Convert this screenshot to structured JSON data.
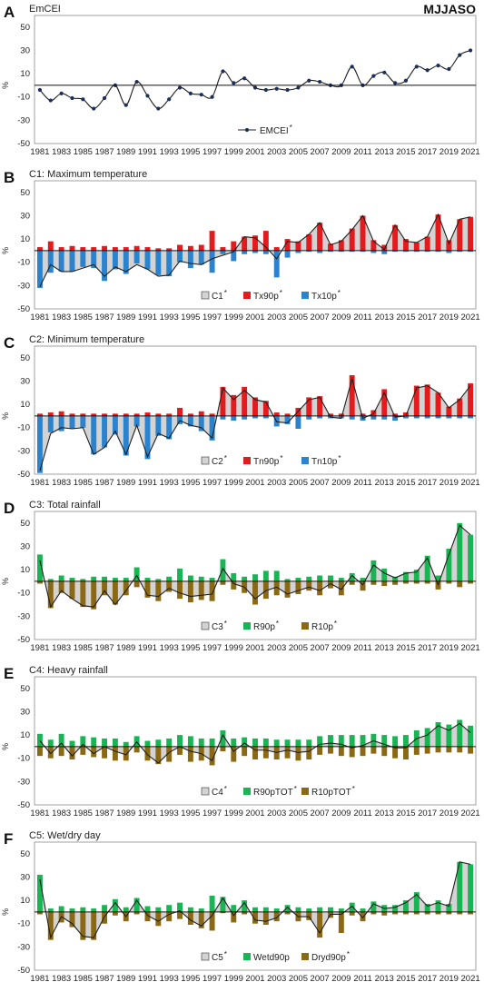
{
  "season": "MJJASO",
  "colors": {
    "composite_fill": "#d3d3d3",
    "line": "#1f1f1f",
    "warm": "#e41a1c",
    "cold": "#2b83ce",
    "wet": "#19b454",
    "dry": "#8b6914",
    "emcei": "#1c2f5a"
  },
  "years": [
    1981,
    1982,
    1983,
    1984,
    1985,
    1986,
    1987,
    1988,
    1989,
    1990,
    1991,
    1992,
    1993,
    1994,
    1995,
    1996,
    1997,
    1998,
    1999,
    2000,
    2001,
    2002,
    2003,
    2004,
    2005,
    2006,
    2007,
    2008,
    2009,
    2010,
    2011,
    2012,
    2013,
    2014,
    2015,
    2016,
    2017,
    2018,
    2019,
    2020,
    2021
  ],
  "chart_data": [
    {
      "type": "line",
      "letter": "A",
      "title": "EmCEI",
      "ylabel": "%",
      "ylim": [
        -50,
        60
      ],
      "yticks": [
        50,
        30,
        10,
        -10,
        -30,
        -50
      ],
      "xticks": [
        "1981",
        "1983",
        "1985",
        "1987",
        "1989",
        "1991",
        "1993",
        "1995",
        "1997",
        "1999",
        "2001",
        "2003",
        "2005",
        "2007",
        "2009",
        "2011",
        "2013",
        "2015",
        "2017",
        "2019",
        "2021"
      ],
      "composite": {
        "name": "EMCEI",
        "values": [
          -4,
          -13,
          -7,
          -11,
          -12,
          -20,
          -11,
          0,
          -17,
          3,
          -9,
          -20,
          -12,
          -2,
          -7,
          -8,
          -10,
          12,
          2,
          6,
          -2,
          -4,
          -3,
          -4,
          -2,
          4,
          3,
          0,
          0,
          16,
          0,
          8,
          11,
          2,
          4,
          16,
          13,
          17,
          14,
          26,
          30
        ]
      },
      "legend": [
        {
          "label": "EMCEI",
          "sup": "*",
          "kind": "emcei"
        }
      ]
    },
    {
      "type": "bar",
      "letter": "B",
      "title": "C1: Maximum temperature",
      "ylabel": "%",
      "ylim": [
        -50,
        60
      ],
      "yticks": [
        50,
        30,
        10,
        -10,
        -30,
        -50
      ],
      "xticks": [
        "1981",
        "1983",
        "1985",
        "1987",
        "1989",
        "1991",
        "1993",
        "1995",
        "1997",
        "1999",
        "2001",
        "2003",
        "2005",
        "2007",
        "2009",
        "2011",
        "2013",
        "2015",
        "2017",
        "2019",
        "2021"
      ],
      "composite": {
        "name": "C1",
        "values": [
          -31,
          -12,
          -18,
          -18,
          -15,
          -12,
          -22,
          -14,
          -18,
          -12,
          -16,
          -22,
          -21,
          -9,
          -11,
          -12,
          -7,
          -4,
          -1,
          12,
          11,
          3,
          -7,
          8,
          7,
          14,
          24,
          5,
          8,
          18,
          30,
          8,
          1,
          22,
          8,
          7,
          12,
          31,
          6,
          27,
          29
        ]
      },
      "series": [
        {
          "name": "Tx90p",
          "values": [
            3,
            8,
            3,
            4,
            3,
            3,
            4,
            3,
            3,
            4,
            3,
            2,
            2,
            5,
            4,
            5,
            17,
            3,
            8,
            12,
            13,
            17,
            3,
            10,
            8,
            14,
            24,
            6,
            9,
            19,
            30,
            9,
            5,
            22,
            10,
            7,
            12,
            31,
            9,
            27,
            29
          ]
        },
        {
          "name": "Tx10p",
          "values": [
            -32,
            -19,
            -18,
            -18,
            -14,
            -15,
            -26,
            -16,
            -20,
            -11,
            -16,
            -21,
            -22,
            -10,
            -15,
            -12,
            -19,
            -3,
            -9,
            -3,
            -2,
            -3,
            -23,
            -6,
            -2,
            -1,
            -2,
            -1,
            -1,
            -1,
            -1,
            -2,
            -3,
            -1,
            -1,
            -1,
            -1,
            -1,
            -2,
            -1,
            -1
          ]
        }
      ],
      "legend": [
        {
          "label": "C1",
          "sup": "*",
          "kind": "composite"
        },
        {
          "label": "Tx90p",
          "sup": "*",
          "kind": "warm"
        },
        {
          "label": "Tx10p",
          "sup": "*",
          "kind": "cold"
        }
      ]
    },
    {
      "type": "bar",
      "letter": "C",
      "title": "C2: Minimum temperature",
      "ylabel": "%",
      "ylim": [
        -50,
        60
      ],
      "yticks": [
        50,
        30,
        10,
        -10,
        -30,
        -50
      ],
      "xticks": [
        "1981",
        "1983",
        "1985",
        "1987",
        "1989",
        "1991",
        "1993",
        "1995",
        "1997",
        "1999",
        "2001",
        "2003",
        "2005",
        "2007",
        "2009",
        "2011",
        "2013",
        "2015",
        "2017",
        "2019",
        "2021"
      ],
      "composite": {
        "name": "C2",
        "values": [
          -47,
          -15,
          -10,
          -11,
          -10,
          -33,
          -27,
          -13,
          -33,
          -8,
          -35,
          -15,
          -19,
          -4,
          -8,
          -10,
          -19,
          24,
          14,
          22,
          14,
          12,
          -5,
          -6,
          4,
          14,
          16,
          -1,
          -2,
          32,
          -2,
          2,
          20,
          -1,
          0,
          24,
          26,
          20,
          7,
          14,
          26
        ]
      },
      "series": [
        {
          "name": "Tn90p",
          "values": [
            2,
            3,
            4,
            2,
            2,
            2,
            2,
            2,
            2,
            2,
            3,
            2,
            2,
            7,
            2,
            4,
            2,
            25,
            18,
            25,
            16,
            13,
            3,
            2,
            7,
            16,
            17,
            2,
            2,
            35,
            2,
            5,
            23,
            2,
            3,
            26,
            27,
            20,
            8,
            15,
            28
          ]
        },
        {
          "name": "Tn10p",
          "values": [
            -49,
            -14,
            -13,
            -11,
            -10,
            -33,
            -27,
            -16,
            -34,
            -9,
            -37,
            -17,
            -20,
            -7,
            -9,
            -13,
            -21,
            -3,
            -4,
            -3,
            -2,
            -2,
            -9,
            -7,
            -11,
            -3,
            -2,
            -2,
            -2,
            -3,
            -4,
            -3,
            -3,
            -4,
            -2,
            -2,
            -2,
            -2,
            -2,
            -2,
            -2
          ]
        }
      ],
      "legend": [
        {
          "label": "C2",
          "sup": "*",
          "kind": "composite"
        },
        {
          "label": "Tn90p",
          "sup": "*",
          "kind": "warm"
        },
        {
          "label": "Tn10p",
          "sup": "*",
          "kind": "cold"
        }
      ]
    },
    {
      "type": "bar",
      "letter": "D",
      "title": "C3: Total rainfall",
      "ylabel": "%",
      "ylim": [
        -50,
        60
      ],
      "yticks": [
        50,
        30,
        10,
        -10,
        -30,
        -50
      ],
      "xticks": [
        "1981",
        "1983",
        "1985",
        "1987",
        "1989",
        "1991",
        "1993",
        "1995",
        "1997",
        "1999",
        "2001",
        "2003",
        "2005",
        "2007",
        "2009",
        "2011",
        "2013",
        "2015",
        "2017",
        "2019",
        "2021"
      ],
      "composite": {
        "name": "C3",
        "values": [
          18,
          -22,
          -8,
          -15,
          -21,
          -22,
          -8,
          -20,
          -8,
          5,
          -12,
          -13,
          -6,
          -10,
          -13,
          -12,
          -11,
          11,
          -2,
          -5,
          -15,
          -8,
          -5,
          -11,
          -8,
          -5,
          -8,
          -2,
          -7,
          5,
          -3,
          14,
          7,
          3,
          7,
          8,
          20,
          -3,
          23,
          48,
          40
        ]
      },
      "series": [
        {
          "name": "R90p",
          "values": [
            23,
            2,
            5,
            3,
            2,
            4,
            4,
            3,
            3,
            12,
            3,
            2,
            4,
            11,
            5,
            4,
            3,
            19,
            7,
            4,
            6,
            9,
            9,
            2,
            3,
            4,
            5,
            5,
            3,
            7,
            3,
            18,
            11,
            4,
            8,
            10,
            22,
            5,
            28,
            50,
            40
          ]
        },
        {
          "name": "R10p",
          "values": [
            -2,
            -23,
            -10,
            -15,
            -22,
            -24,
            -12,
            -20,
            -12,
            -5,
            -14,
            -17,
            -9,
            -15,
            -18,
            -16,
            -17,
            -3,
            -7,
            -10,
            -20,
            -15,
            -12,
            -14,
            -11,
            -8,
            -12,
            -6,
            -12,
            -3,
            -8,
            -3,
            -4,
            -3,
            -2,
            -2,
            -2,
            -7,
            -2,
            -5,
            -2
          ]
        }
      ],
      "legend": [
        {
          "label": "C3",
          "sup": "*",
          "kind": "composite"
        },
        {
          "label": "R90p",
          "sup": "*",
          "kind": "wet"
        },
        {
          "label": "R10p",
          "sup": "*",
          "kind": "dry"
        }
      ]
    },
    {
      "type": "bar",
      "letter": "E",
      "title": "C4: Heavy rainfall",
      "ylabel": "%",
      "ylim": [
        -50,
        60
      ],
      "yticks": [
        50,
        30,
        10,
        -10,
        -30,
        -50
      ],
      "xticks": [
        "1981",
        "1983",
        "1985",
        "1987",
        "1989",
        "1991",
        "1993",
        "1995",
        "1997",
        "1999",
        "2001",
        "2003",
        "2005",
        "2007",
        "2009",
        "2011",
        "2013",
        "2015",
        "2017",
        "2019",
        "2021"
      ],
      "composite": {
        "name": "C4",
        "values": [
          5,
          -6,
          3,
          -8,
          2,
          -6,
          0,
          -4,
          -7,
          4,
          -7,
          -14,
          -5,
          0,
          -4,
          -6,
          -12,
          10,
          -4,
          3,
          -3,
          -3,
          -5,
          -3,
          -5,
          -4,
          2,
          3,
          2,
          -1,
          1,
          5,
          2,
          -1,
          -1,
          7,
          10,
          18,
          14,
          20,
          12
        ]
      },
      "series": [
        {
          "name": "R90pTOT",
          "values": [
            11,
            6,
            11,
            5,
            9,
            8,
            7,
            7,
            4,
            9,
            5,
            6,
            7,
            10,
            9,
            7,
            7,
            14,
            7,
            8,
            7,
            7,
            6,
            6,
            6,
            6,
            9,
            10,
            10,
            10,
            10,
            11,
            10,
            9,
            10,
            14,
            16,
            21,
            19,
            23,
            18
          ]
        },
        {
          "name": "R10pTOT",
          "values": [
            -8,
            -10,
            -8,
            -11,
            -7,
            -9,
            -10,
            -12,
            -12,
            -5,
            -12,
            -15,
            -13,
            -7,
            -13,
            -12,
            -16,
            -4,
            -13,
            -8,
            -11,
            -10,
            -11,
            -10,
            -12,
            -11,
            -7,
            -6,
            -8,
            -9,
            -8,
            -6,
            -8,
            -10,
            -11,
            -7,
            -6,
            -5,
            -5,
            -5,
            -6
          ]
        }
      ],
      "legend": [
        {
          "label": "C4",
          "sup": "*",
          "kind": "composite"
        },
        {
          "label": "R90pTOT",
          "sup": "*",
          "kind": "wet"
        },
        {
          "label": "R10pTOT",
          "sup": "*",
          "kind": "dry"
        }
      ]
    },
    {
      "type": "bar",
      "letter": "F",
      "title": "C5: Wet/dry day",
      "ylabel": "%",
      "ylim": [
        -50,
        60
      ],
      "yticks": [
        50,
        30,
        10,
        -10,
        -30,
        -50
      ],
      "xticks": [
        "1981",
        "1983",
        "1985",
        "1987",
        "1989",
        "1991",
        "1993",
        "1995",
        "1997",
        "1999",
        "2001",
        "2003",
        "2005",
        "2007",
        "2009",
        "2011",
        "2013",
        "2015",
        "2017",
        "2019",
        "2021"
      ],
      "composite": {
        "name": "C5",
        "values": [
          28,
          -22,
          -4,
          -10,
          -21,
          -22,
          -4,
          8,
          -4,
          10,
          -3,
          -8,
          -2,
          1,
          -7,
          -12,
          -3,
          12,
          -3,
          8,
          -7,
          -8,
          -5,
          4,
          -4,
          -4,
          -18,
          -2,
          -2,
          5,
          -5,
          7,
          3,
          4,
          8,
          15,
          5,
          8,
          5,
          43,
          41
        ]
      },
      "series": [
        {
          "name": "Wetd90p",
          "values": [
            32,
            3,
            5,
            3,
            4,
            3,
            6,
            11,
            4,
            12,
            5,
            4,
            6,
            8,
            4,
            3,
            14,
            13,
            6,
            10,
            4,
            4,
            3,
            6,
            4,
            3,
            4,
            4,
            3,
            8,
            3,
            9,
            6,
            6,
            10,
            17,
            7,
            10,
            7,
            43,
            41
          ]
        },
        {
          "name": "Dryd90p",
          "values": [
            -2,
            -24,
            -9,
            -13,
            -24,
            -24,
            -10,
            -3,
            -8,
            -2,
            -8,
            -12,
            -8,
            -6,
            -11,
            -14,
            -16,
            -1,
            -9,
            -2,
            -10,
            -11,
            -8,
            -2,
            -8,
            -7,
            -22,
            -5,
            -18,
            -3,
            -8,
            -2,
            -3,
            -2,
            -2,
            -2,
            -2,
            -2,
            -2,
            -2,
            -2
          ]
        }
      ],
      "legend": [
        {
          "label": "C5",
          "sup": "*",
          "kind": "composite"
        },
        {
          "label": "Wetd90p",
          "sup": "",
          "kind": "wet"
        },
        {
          "label": "Dryd90p",
          "sup": "*",
          "kind": "dry"
        }
      ]
    }
  ]
}
